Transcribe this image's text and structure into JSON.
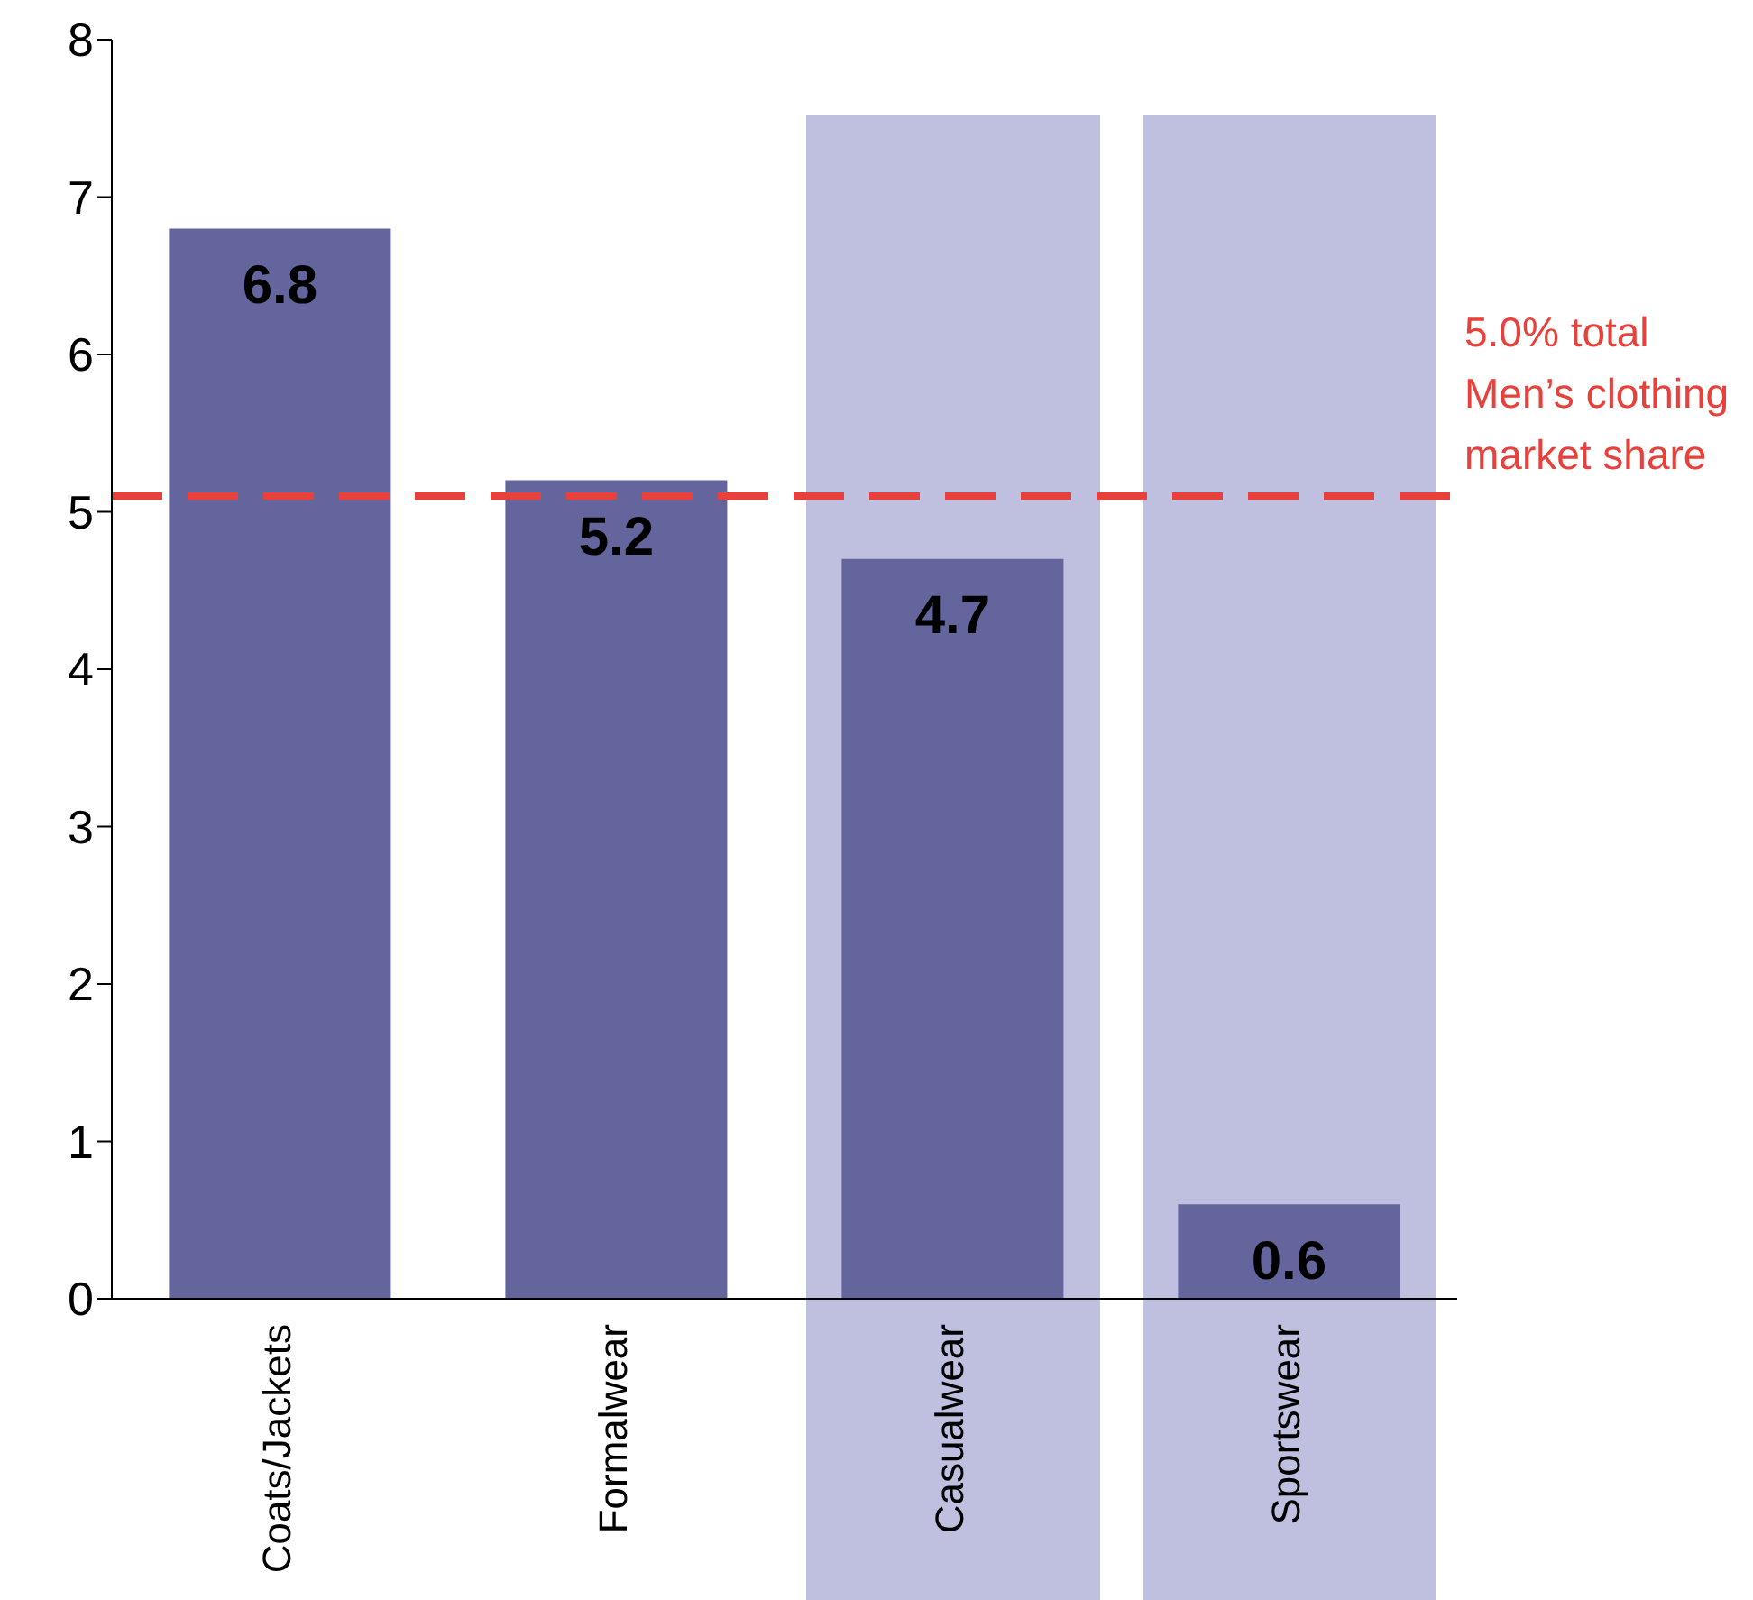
{
  "chart_data": {
    "type": "bar",
    "categories": [
      "Coats/Jackets",
      "Formalwear",
      "Casualwear",
      "Sportswear"
    ],
    "values": [
      6.8,
      5.2,
      4.7,
      0.6
    ],
    "color": "#63659c",
    "data_labels": true,
    "ylim": [
      0,
      8
    ],
    "yticks": [
      0,
      1,
      2,
      3,
      4,
      5,
      6,
      7,
      8
    ],
    "grid": false,
    "ref_lines": [
      {
        "axis": "y",
        "value": 5.1,
        "label": "5.0% total Men’s clothing market share",
        "color": "#e8403a",
        "line_style": "dashed"
      }
    ],
    "bands": [
      {
        "axis": "x",
        "from": "Casualwear",
        "to": "Casualwear",
        "color": "#bfc0e0"
      },
      {
        "axis": "x",
        "from": "Sportswear",
        "to": "Sportswear",
        "color": "#bfc0e0"
      }
    ]
  }
}
